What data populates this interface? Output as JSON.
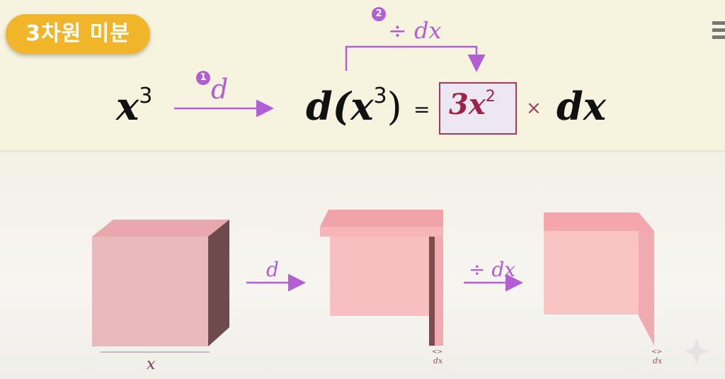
{
  "badge": {
    "label": "3차원 미분"
  },
  "formula": {
    "x": "x",
    "cube_exp": "3",
    "step1_num": "1",
    "step1_label": "d",
    "d_x3": "d(x",
    "d_x3_close": ")",
    "equals": "=",
    "box_text": "3x",
    "box_exp": "2",
    "times": "×",
    "dx": "dx",
    "step2_num": "2",
    "step2_label": "÷ dx"
  },
  "illustration": {
    "cube_label": "x",
    "arrow1_label": "d",
    "arrow2_label": "÷ dx",
    "small_dx1": "dx",
    "small_dx2": "dx"
  },
  "colors": {
    "accent_purple": "#b15fd3",
    "badge_gold": "#f1b52a",
    "cube_pink": "#f2b3ba",
    "box_border": "#a4395a"
  }
}
